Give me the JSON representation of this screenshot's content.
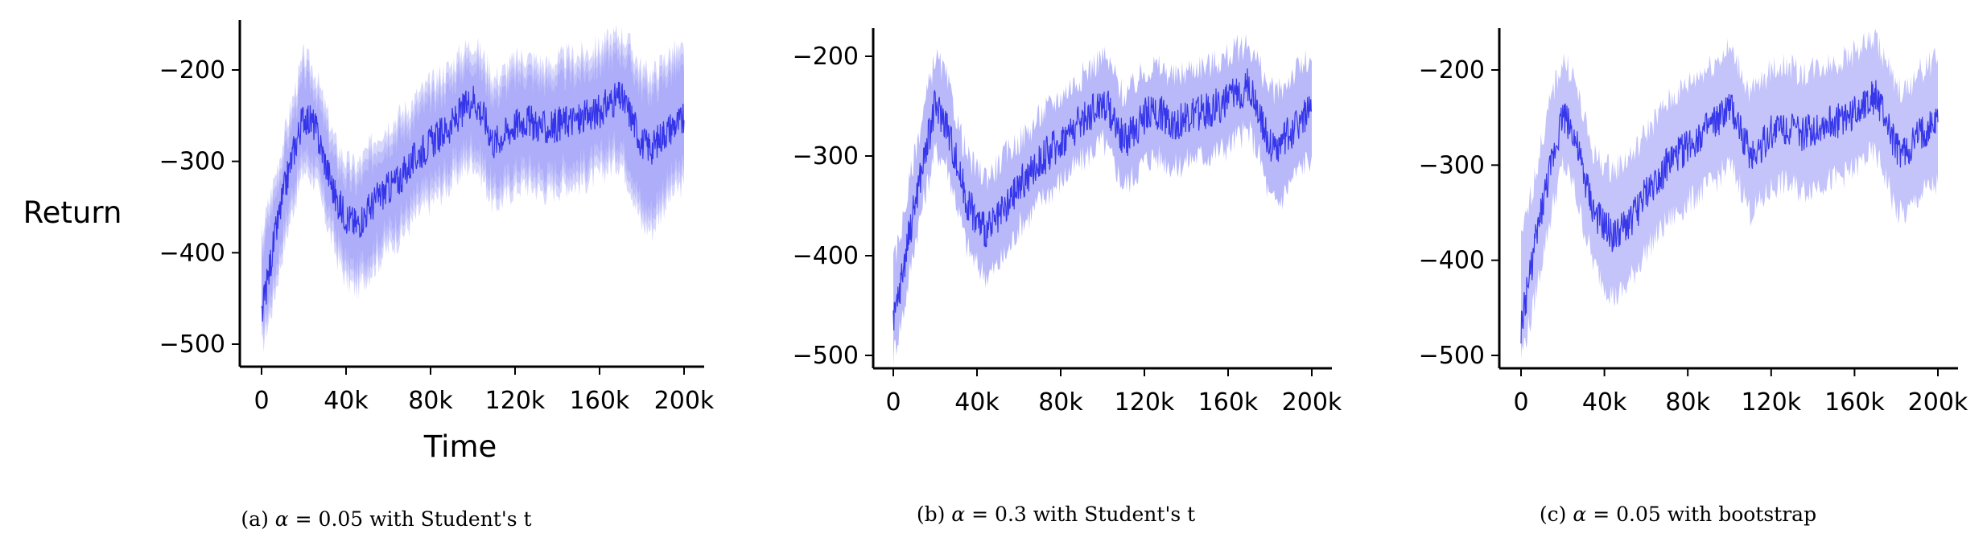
{
  "figure": {
    "ylabel": "Return",
    "xlabel": "Time"
  },
  "chart_data": [
    {
      "type": "line",
      "caption_label": "(a)",
      "caption_symbol": "α",
      "caption_rest": "= 0.05 with Student's t",
      "xlabel": "Time",
      "ylabel": "Return",
      "xlim": [
        0,
        200000
      ],
      "ylim": [
        -510,
        -160
      ],
      "x_ticks": [
        0,
        40000,
        80000,
        120000,
        160000,
        200000
      ],
      "x_tick_labels": [
        "0",
        "40k",
        "80k",
        "120k",
        "160k",
        "200k"
      ],
      "y_ticks": [
        -500,
        -400,
        -300,
        -200
      ],
      "y_tick_labels": [
        "−500",
        "−400",
        "−300",
        "−200"
      ],
      "grid": false,
      "band": "multiple overlapping confidence bands",
      "series": [
        {
          "color": "#1f1fe6",
          "band_color": "#8f8ff7",
          "x": [
            0,
            5000,
            10000,
            15000,
            20000,
            25000,
            30000,
            35000,
            40000,
            45000,
            50000,
            55000,
            60000,
            65000,
            70000,
            75000,
            80000,
            85000,
            90000,
            95000,
            100000,
            105000,
            110000,
            115000,
            120000,
            125000,
            130000,
            135000,
            140000,
            145000,
            150000,
            155000,
            160000,
            165000,
            170000,
            175000,
            180000,
            185000,
            190000,
            195000,
            200000
          ],
          "y": [
            -470,
            -400,
            -340,
            -290,
            -250,
            -260,
            -300,
            -340,
            -360,
            -370,
            -355,
            -340,
            -330,
            -320,
            -305,
            -290,
            -280,
            -270,
            -260,
            -245,
            -230,
            -250,
            -280,
            -270,
            -260,
            -255,
            -260,
            -265,
            -260,
            -255,
            -255,
            -250,
            -245,
            -235,
            -230,
            -250,
            -280,
            -285,
            -270,
            -260,
            -255
          ],
          "lower": [
            -505,
            -460,
            -400,
            -350,
            -310,
            -320,
            -360,
            -400,
            -430,
            -440,
            -425,
            -410,
            -395,
            -385,
            -370,
            -355,
            -345,
            -335,
            -325,
            -310,
            -300,
            -320,
            -350,
            -340,
            -330,
            -325,
            -330,
            -335,
            -330,
            -325,
            -325,
            -320,
            -315,
            -305,
            -300,
            -330,
            -370,
            -375,
            -350,
            -335,
            -325
          ],
          "upper": [
            -380,
            -330,
            -280,
            -230,
            -185,
            -200,
            -240,
            -280,
            -300,
            -305,
            -290,
            -270,
            -260,
            -250,
            -240,
            -225,
            -215,
            -205,
            -195,
            -180,
            -170,
            -185,
            -210,
            -200,
            -190,
            -185,
            -190,
            -195,
            -190,
            -185,
            -185,
            -180,
            -175,
            -165,
            -160,
            -175,
            -200,
            -205,
            -190,
            -180,
            -180
          ]
        }
      ]
    },
    {
      "type": "line",
      "caption_label": "(b)",
      "caption_symbol": "α",
      "caption_rest": "= 0.3 with Student's t",
      "xlim": [
        0,
        200000
      ],
      "ylim": [
        -510,
        -170
      ],
      "x_ticks": [
        0,
        40000,
        80000,
        120000,
        160000,
        200000
      ],
      "x_tick_labels": [
        "0",
        "40k",
        "80k",
        "120k",
        "160k",
        "200k"
      ],
      "y_ticks": [
        -500,
        -400,
        -300,
        -200
      ],
      "y_tick_labels": [
        "−500",
        "−400",
        "−300",
        "−200"
      ],
      "grid": false,
      "band": "single confidence band",
      "series": [
        {
          "color": "#1f1fe6",
          "band_color": "#b9b9fa",
          "x": [
            0,
            5000,
            10000,
            15000,
            20000,
            25000,
            30000,
            35000,
            40000,
            45000,
            50000,
            55000,
            60000,
            65000,
            70000,
            75000,
            80000,
            85000,
            90000,
            95000,
            100000,
            105000,
            110000,
            115000,
            120000,
            125000,
            130000,
            135000,
            140000,
            145000,
            150000,
            155000,
            160000,
            165000,
            170000,
            175000,
            180000,
            185000,
            190000,
            195000,
            200000
          ],
          "y": [
            -470,
            -410,
            -350,
            -300,
            -250,
            -265,
            -305,
            -345,
            -365,
            -375,
            -365,
            -350,
            -330,
            -320,
            -305,
            -295,
            -285,
            -275,
            -265,
            -255,
            -245,
            -260,
            -285,
            -275,
            -260,
            -255,
            -260,
            -268,
            -262,
            -258,
            -255,
            -250,
            -245,
            -235,
            -230,
            -255,
            -290,
            -290,
            -275,
            -262,
            -255
          ],
          "lower": [
            -500,
            -455,
            -390,
            -340,
            -295,
            -305,
            -345,
            -390,
            -410,
            -420,
            -410,
            -395,
            -370,
            -360,
            -345,
            -335,
            -325,
            -315,
            -305,
            -295,
            -285,
            -305,
            -330,
            -320,
            -305,
            -300,
            -305,
            -312,
            -305,
            -300,
            -300,
            -295,
            -290,
            -280,
            -275,
            -300,
            -345,
            -345,
            -325,
            -310,
            -300
          ],
          "upper": [
            -410,
            -360,
            -300,
            -250,
            -200,
            -220,
            -260,
            -300,
            -315,
            -320,
            -310,
            -295,
            -285,
            -275,
            -260,
            -250,
            -240,
            -230,
            -220,
            -210,
            -200,
            -215,
            -240,
            -230,
            -215,
            -210,
            -215,
            -222,
            -215,
            -210,
            -210,
            -205,
            -200,
            -192,
            -188,
            -210,
            -235,
            -235,
            -220,
            -210,
            -205
          ]
        }
      ]
    },
    {
      "type": "line",
      "caption_label": "(c)",
      "caption_symbol": "α",
      "caption_rest": "= 0.05 with bootstrap",
      "xlim": [
        0,
        200000
      ],
      "ylim": [
        -510,
        -150
      ],
      "x_ticks": [
        0,
        40000,
        80000,
        120000,
        160000,
        200000
      ],
      "x_tick_labels": [
        "0",
        "40k",
        "80k",
        "120k",
        "160k",
        "200k"
      ],
      "y_ticks": [
        -500,
        -400,
        -300,
        -200
      ],
      "y_tick_labels": [
        "−500",
        "−400",
        "−300",
        "−200"
      ],
      "grid": false,
      "band": "single confidence band",
      "series": [
        {
          "color": "#1f1fe6",
          "band_color": "#c4c4fb",
          "x": [
            0,
            5000,
            10000,
            15000,
            20000,
            25000,
            30000,
            35000,
            40000,
            45000,
            50000,
            55000,
            60000,
            65000,
            70000,
            75000,
            80000,
            85000,
            90000,
            95000,
            100000,
            105000,
            110000,
            115000,
            120000,
            125000,
            130000,
            135000,
            140000,
            145000,
            150000,
            155000,
            160000,
            165000,
            170000,
            175000,
            180000,
            185000,
            190000,
            195000,
            200000
          ],
          "y": [
            -470,
            -405,
            -345,
            -295,
            -245,
            -265,
            -310,
            -350,
            -365,
            -375,
            -365,
            -350,
            -330,
            -315,
            -300,
            -290,
            -280,
            -270,
            -262,
            -252,
            -240,
            -260,
            -290,
            -280,
            -265,
            -258,
            -262,
            -268,
            -262,
            -258,
            -255,
            -250,
            -245,
            -232,
            -228,
            -252,
            -285,
            -288,
            -272,
            -262,
            -255
          ],
          "lower": [
            -500,
            -460,
            -400,
            -345,
            -300,
            -320,
            -365,
            -405,
            -425,
            -440,
            -430,
            -410,
            -390,
            -375,
            -360,
            -350,
            -340,
            -330,
            -322,
            -312,
            -300,
            -320,
            -350,
            -340,
            -325,
            -318,
            -322,
            -328,
            -322,
            -318,
            -315,
            -310,
            -305,
            -292,
            -288,
            -312,
            -350,
            -352,
            -335,
            -325,
            -320
          ],
          "upper": [
            -380,
            -330,
            -275,
            -225,
            -190,
            -205,
            -250,
            -290,
            -300,
            -305,
            -295,
            -285,
            -265,
            -250,
            -235,
            -225,
            -215,
            -205,
            -197,
            -187,
            -178,
            -198,
            -225,
            -215,
            -200,
            -195,
            -198,
            -205,
            -198,
            -195,
            -192,
            -188,
            -182,
            -172,
            -168,
            -190,
            -220,
            -222,
            -205,
            -195,
            -188
          ]
        }
      ]
    }
  ]
}
